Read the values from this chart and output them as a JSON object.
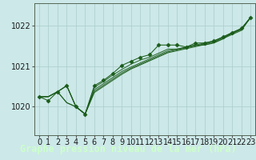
{
  "title": "Graphe pression niveau de la mer (hPa)",
  "bg_color": "#cce8e8",
  "plot_bg_color": "#cce8e8",
  "grid_color": "#aacccc",
  "line_color": "#1a5c1a",
  "marker_color": "#1a5c1a",
  "footer_bg": "#2d6b2d",
  "footer_text_color": "#ccffcc",
  "xlim": [
    -0.5,
    23.5
  ],
  "ylim": [
    1019.3,
    1022.55
  ],
  "yticks": [
    1020,
    1021,
    1022
  ],
  "xticks": [
    0,
    1,
    2,
    3,
    4,
    5,
    6,
    7,
    8,
    9,
    10,
    11,
    12,
    13,
    14,
    15,
    16,
    17,
    18,
    19,
    20,
    21,
    22,
    23
  ],
  "series": [
    [
      1020.25,
      1020.25,
      1020.37,
      1020.52,
      1020.0,
      1019.82,
      1020.48,
      1020.62,
      1020.78,
      1020.92,
      1021.05,
      1021.15,
      1021.22,
      1021.32,
      1021.42,
      1021.42,
      1021.47,
      1021.52,
      1021.52,
      1021.57,
      1021.67,
      1021.82,
      1021.92,
      1022.2
    ],
    [
      1020.25,
      1020.25,
      1020.37,
      1020.52,
      1020.0,
      1019.82,
      1020.42,
      1020.57,
      1020.72,
      1020.87,
      1020.98,
      1021.08,
      1021.18,
      1021.28,
      1021.38,
      1021.42,
      1021.47,
      1021.52,
      1021.57,
      1021.62,
      1021.72,
      1021.82,
      1021.92,
      1022.2
    ],
    [
      1020.25,
      1020.25,
      1020.37,
      1020.1,
      1020.0,
      1019.82,
      1020.38,
      1020.53,
      1020.68,
      1020.83,
      1020.95,
      1021.05,
      1021.15,
      1021.25,
      1021.35,
      1021.4,
      1021.45,
      1021.5,
      1021.55,
      1021.6,
      1021.7,
      1021.8,
      1021.9,
      1022.2
    ],
    [
      1020.25,
      1020.25,
      1020.37,
      1020.1,
      1020.0,
      1019.82,
      1020.35,
      1020.5,
      1020.65,
      1020.8,
      1020.93,
      1021.03,
      1021.13,
      1021.23,
      1021.33,
      1021.38,
      1021.43,
      1021.48,
      1021.53,
      1021.58,
      1021.68,
      1021.78,
      1021.88,
      1022.2
    ]
  ],
  "main_series": [
    1020.25,
    1020.15,
    1020.37,
    1020.52,
    1020.0,
    1019.82,
    1020.52,
    1020.65,
    1020.82,
    1021.02,
    1021.12,
    1021.22,
    1021.28,
    1021.52,
    1021.52,
    1021.52,
    1021.47,
    1021.57,
    1021.57,
    1021.62,
    1021.72,
    1021.83,
    1021.93,
    1022.2
  ],
  "tick_fontsize": 7,
  "xlabel_fontsize": 8.5
}
